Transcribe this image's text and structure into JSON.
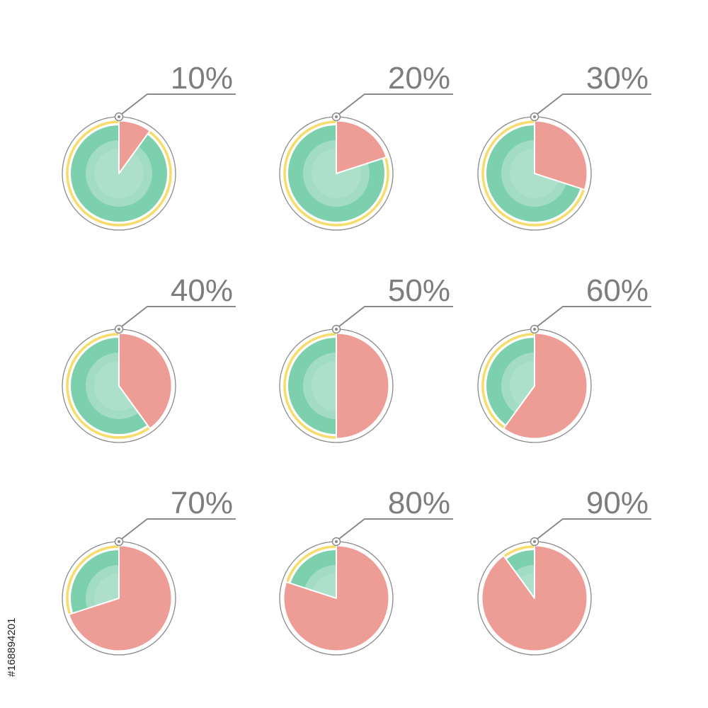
{
  "colors": {
    "background": "#ffffff",
    "remaining": "#7dd0ad",
    "remaining_light": "#a3dcc4",
    "remaining_inner": "#b5e3cf",
    "filled": "#ee9d96",
    "accent_ring": "#f6dc6a",
    "outline": "#8a8a8a",
    "label": "#7d7d7d",
    "divider": "#ffffff"
  },
  "chart_data": [
    {
      "type": "pie",
      "label": "10%",
      "value": 10,
      "max": 100
    },
    {
      "type": "pie",
      "label": "20%",
      "value": 20,
      "max": 100
    },
    {
      "type": "pie",
      "label": "30%",
      "value": 30,
      "max": 100
    },
    {
      "type": "pie",
      "label": "40%",
      "value": 40,
      "max": 100
    },
    {
      "type": "pie",
      "label": "50%",
      "value": 50,
      "max": 100
    },
    {
      "type": "pie",
      "label": "60%",
      "value": 60,
      "max": 100
    },
    {
      "type": "pie",
      "label": "70%",
      "value": 70,
      "max": 100
    },
    {
      "type": "pie",
      "label": "80%",
      "value": 80,
      "max": 100
    },
    {
      "type": "pie",
      "label": "90%",
      "value": 90,
      "max": 100
    }
  ],
  "stock_id": "#168894201"
}
